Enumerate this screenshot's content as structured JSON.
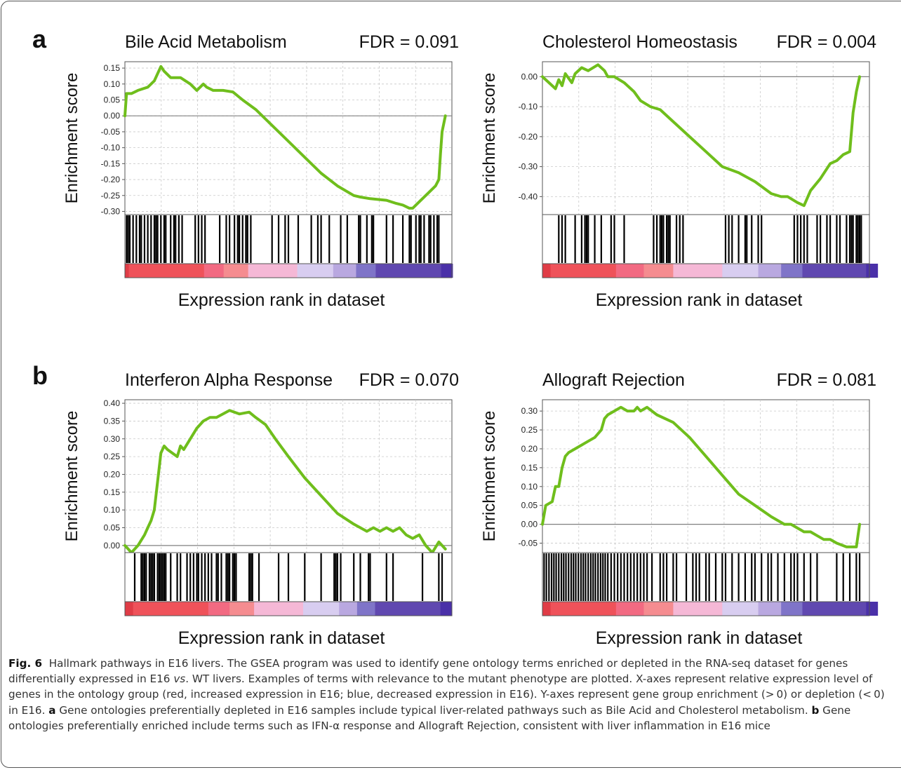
{
  "panel_labels": [
    "a",
    "b"
  ],
  "caption": {
    "fig_label": "Fig. 6",
    "p1": "Hallmark pathways in E16 livers. The GSEA program was used to identify gene ontology terms enriched or depleted in the RNA-seq dataset for genes differentially expressed in E16 ",
    "vs": "vs",
    "p2": ". WT livers. Examples of terms with relevance to the mutant phenotype are plotted. X-axes represent relative expression level of genes in the ontology group (red, increased expression in E16; blue, decreased expression in E16). Y-axes represent gene group enrichment (> 0) or depletion (< 0) in E16. ",
    "a_label": "a",
    "a_text": " Gene ontologies preferentially depleted in E16 samples include typical liver-related pathways such as Bile Acid and Cholesterol metabolism. ",
    "b_label": "b",
    "b_text": " Gene ontologies preferentially enriched include terms such as IFN-α response and Allograft Rejection, consistent with liver inflammation in E16 mice"
  },
  "colors": {
    "curve": "#6fbe1c",
    "hits": "#000000",
    "grid": "#c8c8c8",
    "axis": "#555555",
    "zero_line": "#808080",
    "rank_bar": [
      "#e03c46",
      "#ef525a",
      "#f26a82",
      "#f58c90",
      "#f5b8d6",
      "#d8cdf0",
      "#b9a8e0",
      "#7f74c8",
      "#6048b0",
      "#4a30a8"
    ]
  },
  "chart_data": [
    {
      "type": "line",
      "panel": "a",
      "title": "Bile Acid Metabolism",
      "annotation": "FDR = 0.091",
      "ylabel": "Enrichment score",
      "xlabel": "Expression rank in dataset",
      "yticks": [
        "0.15",
        "0.10",
        "0.05",
        "0.00",
        "-0.05",
        "-0.10",
        "-0.15",
        "-0.20",
        "-0.25",
        "-0.30"
      ],
      "ylim": [
        -0.31,
        0.17
      ],
      "xlim": [
        0,
        1
      ],
      "grid": true,
      "series": [
        {
          "x": [
            0.0,
            0.005,
            0.02,
            0.04,
            0.07,
            0.09,
            0.11,
            0.12,
            0.14,
            0.17,
            0.2,
            0.22,
            0.24,
            0.25,
            0.27,
            0.3,
            0.33,
            0.36,
            0.4,
            0.45,
            0.5,
            0.55,
            0.6,
            0.65,
            0.7,
            0.72,
            0.75,
            0.8,
            0.83,
            0.85,
            0.87,
            0.88,
            0.9,
            0.93,
            0.95,
            0.96,
            0.965,
            0.97,
            0.98
          ],
          "y": [
            0.0,
            0.07,
            0.07,
            0.08,
            0.09,
            0.11,
            0.155,
            0.14,
            0.12,
            0.12,
            0.1,
            0.08,
            0.1,
            0.09,
            0.08,
            0.08,
            0.075,
            0.05,
            0.02,
            -0.03,
            -0.08,
            -0.13,
            -0.18,
            -0.22,
            -0.25,
            -0.255,
            -0.26,
            -0.265,
            -0.275,
            -0.28,
            -0.29,
            -0.29,
            -0.27,
            -0.24,
            -0.22,
            -0.2,
            -0.12,
            -0.05,
            0.0
          ]
        }
      ],
      "hits": [
        0.005,
        0.01,
        0.015,
        0.025,
        0.035,
        0.045,
        0.05,
        0.06,
        0.07,
        0.08,
        0.09,
        0.095,
        0.1,
        0.11,
        0.12,
        0.125,
        0.14,
        0.15,
        0.155,
        0.165,
        0.175,
        0.215,
        0.225,
        0.235,
        0.245,
        0.29,
        0.31,
        0.32,
        0.335,
        0.345,
        0.35,
        0.36,
        0.37,
        0.375,
        0.385,
        0.45,
        0.47,
        0.49,
        0.5,
        0.53,
        0.57,
        0.59,
        0.6,
        0.625,
        0.66,
        0.68,
        0.715,
        0.72,
        0.74,
        0.755,
        0.76,
        0.8,
        0.82,
        0.85,
        0.87,
        0.875,
        0.89,
        0.9,
        0.905,
        0.915,
        0.93,
        0.935,
        0.945,
        0.955,
        0.96
      ],
      "rank_segments": [
        0.012,
        0.23,
        0.06,
        0.075,
        0.15,
        0.11,
        0.07,
        0.06,
        0.2,
        0.035
      ]
    },
    {
      "type": "line",
      "panel": "a",
      "title": "Cholesterol Homeostasis",
      "annotation": "FDR = 0.004",
      "ylabel": "Enrichment score",
      "xlabel": "Expression rank in dataset",
      "yticks": [
        "0.00",
        "-0.10",
        "-0.20",
        "-0.30",
        "-0.40"
      ],
      "ylim": [
        -0.46,
        0.05
      ],
      "xlim": [
        0,
        1
      ],
      "grid": true,
      "series": [
        {
          "x": [
            0.0,
            0.02,
            0.04,
            0.05,
            0.06,
            0.07,
            0.09,
            0.1,
            0.12,
            0.14,
            0.17,
            0.19,
            0.2,
            0.22,
            0.25,
            0.28,
            0.3,
            0.33,
            0.36,
            0.4,
            0.45,
            0.5,
            0.55,
            0.6,
            0.65,
            0.7,
            0.73,
            0.75,
            0.78,
            0.8,
            0.82,
            0.85,
            0.88,
            0.9,
            0.92,
            0.94,
            0.95,
            0.96,
            0.97
          ],
          "y": [
            0.0,
            -0.02,
            -0.04,
            -0.01,
            -0.03,
            0.01,
            -0.02,
            0.01,
            0.03,
            0.02,
            0.04,
            0.02,
            0.0,
            0.0,
            -0.02,
            -0.05,
            -0.08,
            -0.1,
            -0.11,
            -0.15,
            -0.2,
            -0.25,
            -0.3,
            -0.32,
            -0.35,
            -0.39,
            -0.4,
            -0.4,
            -0.42,
            -0.43,
            -0.38,
            -0.34,
            -0.29,
            -0.28,
            -0.26,
            -0.25,
            -0.12,
            -0.05,
            0.0
          ]
        }
      ],
      "hits": [
        0.05,
        0.06,
        0.07,
        0.1,
        0.12,
        0.13,
        0.135,
        0.14,
        0.16,
        0.18,
        0.21,
        0.22,
        0.25,
        0.34,
        0.35,
        0.36,
        0.365,
        0.37,
        0.38,
        0.385,
        0.39,
        0.41,
        0.42,
        0.43,
        0.56,
        0.57,
        0.58,
        0.6,
        0.62,
        0.625,
        0.64,
        0.66,
        0.67,
        0.77,
        0.78,
        0.79,
        0.8,
        0.81,
        0.84,
        0.85,
        0.87,
        0.88,
        0.9,
        0.91,
        0.93,
        0.94,
        0.945,
        0.95,
        0.96,
        0.965,
        0.97,
        0.975
      ],
      "rank_segments": [
        0.025,
        0.2,
        0.085,
        0.09,
        0.15,
        0.11,
        0.07,
        0.065,
        0.195,
        0.035
      ]
    },
    {
      "type": "line",
      "panel": "b",
      "title": "Interferon Alpha Response",
      "annotation": "FDR = 0.070",
      "ylabel": "Enrichment score",
      "xlabel": "Expression rank in dataset",
      "yticks": [
        "0.40",
        "0.35",
        "0.30",
        "0.25",
        "0.20",
        "0.15",
        "0.10",
        "0.05",
        "0.00"
      ],
      "ylim": [
        -0.02,
        0.41
      ],
      "xlim": [
        0,
        1
      ],
      "grid": true,
      "series": [
        {
          "x": [
            0.0,
            0.01,
            0.02,
            0.04,
            0.06,
            0.07,
            0.08,
            0.09,
            0.1,
            0.11,
            0.12,
            0.13,
            0.16,
            0.17,
            0.18,
            0.2,
            0.22,
            0.24,
            0.26,
            0.28,
            0.3,
            0.32,
            0.35,
            0.38,
            0.4,
            0.43,
            0.46,
            0.5,
            0.55,
            0.6,
            0.65,
            0.7,
            0.72,
            0.74,
            0.76,
            0.78,
            0.8,
            0.82,
            0.84,
            0.86,
            0.88,
            0.9,
            0.92,
            0.94,
            0.96,
            0.98
          ],
          "y": [
            0.0,
            -0.01,
            -0.02,
            0.0,
            0.03,
            0.05,
            0.07,
            0.1,
            0.18,
            0.26,
            0.28,
            0.27,
            0.25,
            0.28,
            0.27,
            0.3,
            0.33,
            0.35,
            0.36,
            0.36,
            0.37,
            0.38,
            0.37,
            0.375,
            0.36,
            0.34,
            0.3,
            0.25,
            0.19,
            0.14,
            0.09,
            0.06,
            0.05,
            0.04,
            0.05,
            0.04,
            0.05,
            0.04,
            0.05,
            0.03,
            0.02,
            0.03,
            0.0,
            -0.02,
            0.01,
            -0.01
          ]
        }
      ],
      "hits": [
        0.03,
        0.05,
        0.055,
        0.06,
        0.065,
        0.075,
        0.08,
        0.085,
        0.09,
        0.1,
        0.105,
        0.11,
        0.115,
        0.12,
        0.125,
        0.14,
        0.16,
        0.17,
        0.19,
        0.2,
        0.21,
        0.22,
        0.225,
        0.235,
        0.245,
        0.255,
        0.265,
        0.28,
        0.285,
        0.295,
        0.31,
        0.315,
        0.32,
        0.33,
        0.335,
        0.34,
        0.38,
        0.385,
        0.39,
        0.41,
        0.47,
        0.5,
        0.55,
        0.6,
        0.64,
        0.645,
        0.65,
        0.66,
        0.7,
        0.72,
        0.745,
        0.75,
        0.8,
        0.82,
        0.91,
        0.96,
        0.97
      ],
      "rank_segments": [
        0.025,
        0.23,
        0.065,
        0.075,
        0.15,
        0.11,
        0.055,
        0.055,
        0.2,
        0.035
      ]
    },
    {
      "type": "line",
      "panel": "b",
      "title": "Allograft Rejection",
      "annotation": "FDR = 0.081",
      "ylabel": "Enrichment score",
      "xlabel": "Expression rank in dataset",
      "yticks": [
        "0.30",
        "0.25",
        "0.20",
        "0.15",
        "0.10",
        "0.05",
        "0.00",
        "-0.05"
      ],
      "ylim": [
        -0.075,
        0.33
      ],
      "xlim": [
        0,
        1
      ],
      "grid": true,
      "series": [
        {
          "x": [
            0.0,
            0.01,
            0.03,
            0.04,
            0.05,
            0.06,
            0.07,
            0.08,
            0.1,
            0.12,
            0.14,
            0.16,
            0.18,
            0.19,
            0.2,
            0.22,
            0.24,
            0.26,
            0.28,
            0.29,
            0.3,
            0.32,
            0.35,
            0.4,
            0.45,
            0.5,
            0.55,
            0.6,
            0.65,
            0.7,
            0.72,
            0.74,
            0.76,
            0.78,
            0.8,
            0.82,
            0.84,
            0.86,
            0.88,
            0.9,
            0.93,
            0.95,
            0.96,
            0.97
          ],
          "y": [
            0.0,
            0.05,
            0.06,
            0.1,
            0.1,
            0.15,
            0.18,
            0.19,
            0.2,
            0.21,
            0.22,
            0.23,
            0.25,
            0.28,
            0.29,
            0.3,
            0.31,
            0.3,
            0.3,
            0.31,
            0.3,
            0.31,
            0.29,
            0.27,
            0.23,
            0.18,
            0.13,
            0.08,
            0.05,
            0.02,
            0.01,
            0.0,
            0.0,
            -0.01,
            -0.02,
            -0.02,
            -0.03,
            -0.04,
            -0.04,
            -0.05,
            -0.06,
            -0.06,
            -0.06,
            0.0
          ]
        }
      ],
      "hits": [
        0.005,
        0.012,
        0.02,
        0.028,
        0.035,
        0.042,
        0.05,
        0.058,
        0.065,
        0.072,
        0.08,
        0.088,
        0.095,
        0.102,
        0.11,
        0.118,
        0.125,
        0.132,
        0.14,
        0.148,
        0.155,
        0.162,
        0.17,
        0.178,
        0.185,
        0.192,
        0.2,
        0.21,
        0.22,
        0.23,
        0.24,
        0.25,
        0.26,
        0.27,
        0.28,
        0.29,
        0.3,
        0.31,
        0.32,
        0.335,
        0.36,
        0.37,
        0.38,
        0.4,
        0.41,
        0.44,
        0.46,
        0.47,
        0.48,
        0.5,
        0.51,
        0.53,
        0.55,
        0.56,
        0.58,
        0.6,
        0.62,
        0.64,
        0.65,
        0.67,
        0.69,
        0.7,
        0.72,
        0.74,
        0.76,
        0.77,
        0.78,
        0.8,
        0.82,
        0.84,
        0.9,
        0.92,
        0.94,
        0.96,
        0.97
      ],
      "rank_segments": [
        0.025,
        0.2,
        0.085,
        0.09,
        0.15,
        0.11,
        0.07,
        0.065,
        0.195,
        0.035
      ]
    }
  ]
}
